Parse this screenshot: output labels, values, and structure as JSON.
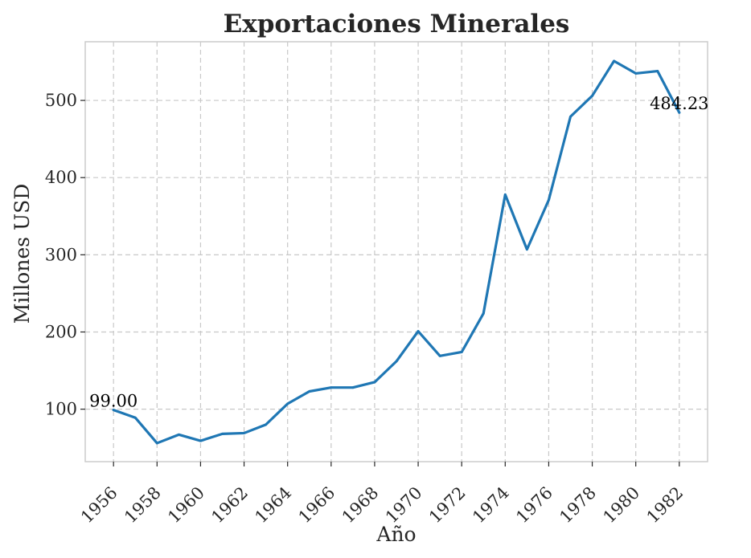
{
  "chart_data": {
    "type": "line",
    "title": "Exportaciones Minerales",
    "xlabel": "Año",
    "ylabel": "Millones USD",
    "x": [
      1956,
      1957,
      1958,
      1959,
      1960,
      1961,
      1962,
      1963,
      1964,
      1965,
      1966,
      1967,
      1968,
      1969,
      1970,
      1971,
      1972,
      1973,
      1974,
      1975,
      1976,
      1977,
      1978,
      1979,
      1980,
      1981,
      1982
    ],
    "series": [
      {
        "values": [
          99.0,
          89,
          56,
          67,
          59,
          68,
          69,
          80,
          107,
          123,
          128,
          128,
          135,
          162,
          201,
          169,
          174,
          224,
          378,
          307,
          371,
          479,
          506,
          551,
          535,
          538,
          484.23
        ],
        "color": "#1f77b4"
      }
    ],
    "xticks": [
      "1956",
      "1958",
      "1960",
      "1962",
      "1964",
      "1966",
      "1968",
      "1970",
      "1972",
      "1974",
      "1976",
      "1978",
      "1980",
      "1982"
    ],
    "yticks": [
      "100",
      "200",
      "300",
      "400",
      "500"
    ],
    "ylim": [
      32,
      576
    ],
    "xlim": [
      1954.7,
      1983.3
    ],
    "grid": true,
    "annotations": [
      {
        "x": 1956,
        "y": 99.0,
        "text": "99.00"
      },
      {
        "x": 1982,
        "y": 484.23,
        "text": "484.23"
      }
    ]
  }
}
